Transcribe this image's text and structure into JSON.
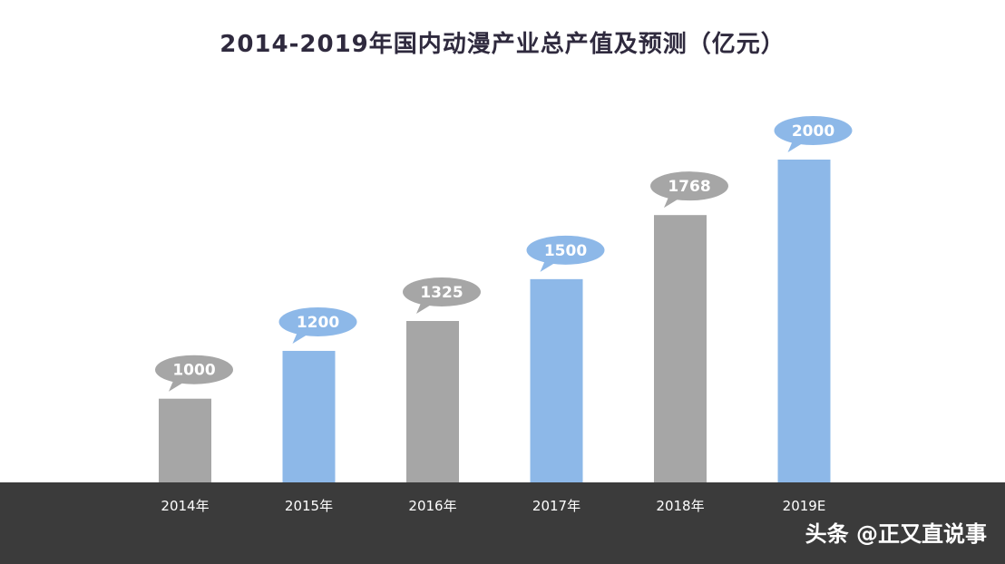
{
  "chart_data": {
    "type": "bar",
    "title": "2014-2019年国内动漫产业总产值及预测（亿元）",
    "categories": [
      "2014年",
      "2015年",
      "2016年",
      "2017年",
      "2018年",
      "2019E"
    ],
    "values": [
      1000,
      1200,
      1325,
      1500,
      1768,
      2000
    ],
    "value_labels": [
      "1000",
      "1200",
      "1325",
      "1500",
      "1768",
      "2000"
    ],
    "bar_colors": [
      "#a6a6a6",
      "#8db8e8",
      "#a6a6a6",
      "#8db8e8",
      "#a6a6a6",
      "#8db8e8"
    ],
    "ylim": [
      0,
      2000
    ],
    "grid": false,
    "xlabel": "",
    "ylabel": ""
  },
  "watermark": {
    "text": "头条 @正又直说事"
  },
  "colors": {
    "gray_bar": "#a6a6a6",
    "blue_bar": "#8db8e8",
    "axis_band": "#3b3b3b",
    "title": "#2f2a3e",
    "bubble_text": "#ffffff",
    "axis_text": "#ffffff"
  }
}
